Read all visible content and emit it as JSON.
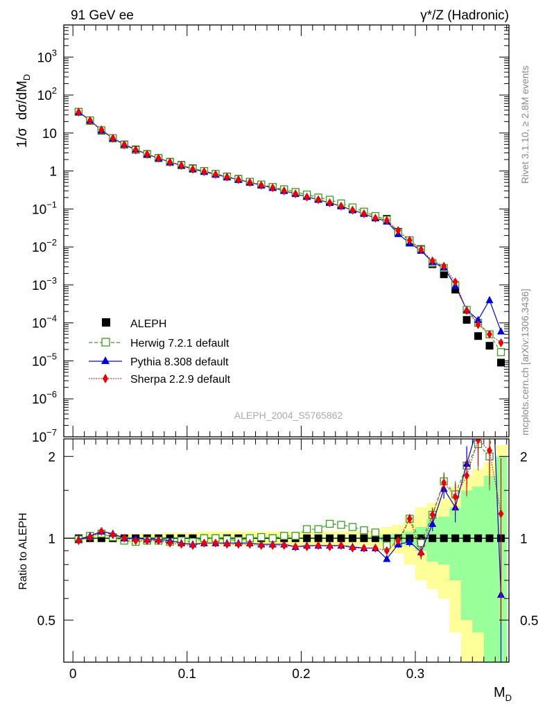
{
  "header": {
    "left": "91 GeV ee",
    "right": "γ*/Z (Hadronic)"
  },
  "side_text": {
    "rivet": "Rivet 3.1.10, ≥ 2.8M events",
    "mcplots": "mcplots.cern.ch [arXiv:1306.3436]"
  },
  "watermark": "ALEPH_2004_S5765862",
  "chart_data": {
    "type": "scatter",
    "title": "91 GeV ee  γ*/Z (Hadronic)",
    "xlabel": "M_D",
    "ylabel": "1/σ dσ/dM_D",
    "ratio_ylabel": "Ratio to ALEPH",
    "xlim": [
      -0.008,
      0.382
    ],
    "ylim_log": [
      1e-07,
      7000
    ],
    "ratio_ylim": [
      0.35,
      2.32
    ],
    "x_ticks": [
      "0",
      "0.1",
      "0.2",
      "0.3"
    ],
    "x_tick_values": [
      0,
      0.1,
      0.2,
      0.3
    ],
    "ratio_ticks": [
      "0.5",
      "1",
      "2"
    ],
    "ratio_tick_values": [
      0.5,
      1,
      2
    ],
    "legend": [
      "ALEPH",
      "Herwig 7.2.1 default",
      "Pythia 8.308 default",
      "Sherpa 2.2.9 default"
    ],
    "colors": {
      "aleph": "#000000",
      "herwig": "#3a9a1e",
      "pythia": "#0000dd",
      "sherpa": "#ee0000",
      "band_yellow": "#ffff99",
      "band_green": "#99ff99"
    },
    "x": [
      0.005,
      0.015,
      0.025,
      0.035,
      0.045,
      0.055,
      0.065,
      0.075,
      0.085,
      0.095,
      0.105,
      0.115,
      0.125,
      0.135,
      0.145,
      0.155,
      0.165,
      0.175,
      0.185,
      0.195,
      0.205,
      0.215,
      0.225,
      0.235,
      0.245,
      0.255,
      0.265,
      0.275,
      0.285,
      0.295,
      0.305,
      0.315,
      0.325,
      0.335,
      0.345,
      0.355,
      0.365,
      0.375
    ],
    "series": [
      {
        "name": "ALEPH",
        "values": [
          36,
          21,
          11.5,
          7.2,
          5.0,
          3.7,
          2.8,
          2.2,
          1.75,
          1.45,
          1.18,
          1.0,
          0.84,
          0.72,
          0.62,
          0.52,
          0.44,
          0.38,
          0.32,
          0.27,
          0.22,
          0.185,
          0.155,
          0.125,
          0.1,
          0.08,
          0.062,
          0.055,
          0.025,
          0.013,
          0.0088,
          0.0035,
          0.0019,
          0.00075,
          0.00012,
          4.5e-05,
          2.5e-05,
          9e-06
        ]
      },
      {
        "name": "Herwig 7.2.1 default",
        "values": [
          36,
          21.5,
          11.8,
          7.3,
          4.9,
          3.6,
          2.75,
          2.17,
          1.72,
          1.42,
          1.15,
          1.0,
          0.84,
          0.71,
          0.61,
          0.52,
          0.44,
          0.38,
          0.33,
          0.28,
          0.24,
          0.2,
          0.175,
          0.14,
          0.11,
          0.085,
          0.065,
          0.052,
          0.024,
          0.015,
          0.0085,
          0.0038,
          0.0028,
          0.001,
          0.00022,
          0.0001,
          5e-05,
          1.7e-05
        ]
      },
      {
        "name": "Pythia 8.308 default",
        "values": [
          36,
          21.5,
          11.8,
          7.3,
          5.0,
          3.7,
          2.75,
          2.17,
          1.72,
          1.4,
          1.12,
          0.96,
          0.81,
          0.69,
          0.59,
          0.5,
          0.42,
          0.36,
          0.3,
          0.25,
          0.21,
          0.175,
          0.145,
          0.118,
          0.093,
          0.075,
          0.057,
          0.047,
          0.022,
          0.0126,
          0.008,
          0.004,
          0.0029,
          0.00095,
          0.00022,
          0.00012,
          0.0004,
          6e-05
        ]
      },
      {
        "name": "Sherpa 2.2.9 default",
        "values": [
          35.5,
          21.3,
          12.2,
          7.3,
          4.9,
          3.6,
          2.75,
          2.17,
          1.7,
          1.4,
          1.11,
          0.96,
          0.81,
          0.69,
          0.59,
          0.5,
          0.42,
          0.36,
          0.3,
          0.25,
          0.205,
          0.175,
          0.145,
          0.118,
          0.093,
          0.075,
          0.057,
          0.05,
          0.027,
          0.015,
          0.0085,
          0.0043,
          0.0031,
          0.0012,
          0.00021,
          9e-05,
          5e-05,
          3e-05
        ]
      }
    ],
    "ratios": {
      "herwig": [
        0.99,
        1.02,
        1.04,
        1.01,
        0.98,
        0.97,
        0.98,
        0.98,
        0.97,
        0.98,
        0.97,
        1.0,
        1.0,
        0.99,
        0.98,
        1.0,
        1.01,
        1.0,
        1.02,
        1.02,
        1.08,
        1.08,
        1.13,
        1.12,
        1.1,
        1.07,
        1.05,
        0.94,
        0.96,
        1.18,
        0.96,
        1.22,
        1.62,
        1.45,
        1.85,
        2.22,
        2.0,
        7.0
      ],
      "pythia": [
        0.99,
        1.02,
        1.06,
        1.04,
        1.0,
        1.0,
        0.99,
        0.99,
        0.98,
        0.96,
        0.95,
        0.96,
        0.96,
        0.96,
        0.96,
        0.96,
        0.95,
        0.95,
        0.95,
        0.93,
        0.94,
        0.94,
        0.94,
        0.94,
        0.93,
        0.92,
        0.92,
        0.84,
        0.95,
        0.97,
        0.89,
        1.13,
        1.52,
        1.3,
        1.88,
        2.6,
        7.0,
        0.62
      ],
      "sherpa": [
        0.98,
        1.01,
        1.06,
        1.03,
        1.0,
        0.98,
        0.98,
        0.98,
        0.96,
        0.95,
        0.94,
        0.96,
        0.96,
        0.95,
        0.95,
        0.95,
        0.94,
        0.94,
        0.94,
        0.93,
        0.93,
        0.94,
        0.93,
        0.94,
        0.92,
        0.92,
        0.92,
        0.9,
        0.98,
        1.18,
        0.88,
        1.22,
        1.6,
        1.42,
        1.7,
        2.3,
        2.1,
        1.23
      ]
    },
    "ratio_errors": [
      0.01,
      0.01,
      0.01,
      0.01,
      0.01,
      0.01,
      0.01,
      0.01,
      0.01,
      0.01,
      0.01,
      0.01,
      0.01,
      0.01,
      0.01,
      0.01,
      0.01,
      0.01,
      0.01,
      0.01,
      0.01,
      0.01,
      0.01,
      0.01,
      0.01,
      0.01,
      0.01,
      0.02,
      0.03,
      0.04,
      0.05,
      0.06,
      0.08,
      0.12,
      0.16,
      0.2,
      0.25,
      0.6
    ],
    "band": {
      "yellow": [
        0.02,
        0.02,
        0.02,
        0.03,
        0.03,
        0.04,
        0.04,
        0.04,
        0.05,
        0.05,
        0.05,
        0.06,
        0.06,
        0.06,
        0.06,
        0.06,
        0.06,
        0.06,
        0.06,
        0.06,
        0.06,
        0.06,
        0.06,
        0.06,
        0.06,
        0.06,
        0.07,
        0.1,
        0.12,
        0.2,
        0.3,
        0.35,
        0.4,
        0.55,
        0.7,
        0.8,
        0.9,
        1.2
      ],
      "green": [
        0.008,
        0.008,
        0.008,
        0.01,
        0.01,
        0.01,
        0.01,
        0.01,
        0.01,
        0.01,
        0.01,
        0.01,
        0.01,
        0.01,
        0.01,
        0.01,
        0.01,
        0.01,
        0.01,
        0.01,
        0.01,
        0.01,
        0.01,
        0.01,
        0.01,
        0.01,
        0.02,
        0.03,
        0.04,
        0.06,
        0.1,
        0.18,
        0.2,
        0.3,
        0.5,
        0.55,
        0.7,
        1.0
      ]
    }
  }
}
